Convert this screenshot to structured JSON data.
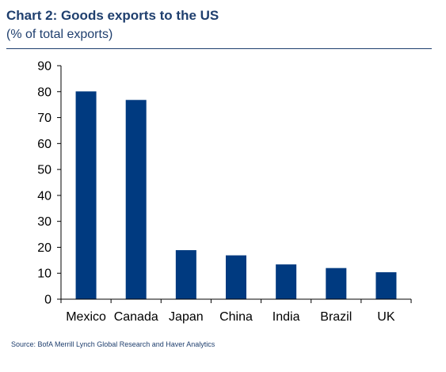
{
  "title": "Chart 2: Goods exports to the US",
  "subtitle": "(% of total exports)",
  "source": "Source: BofA Merrill Lynch Global Research and Haver Analytics",
  "colors": {
    "bar": "#003a80",
    "text": "#1f3f6e",
    "axis": "#000000"
  },
  "chart_data": {
    "type": "bar",
    "title": "Chart 2: Goods exports to the US",
    "subtitle": "(% of total exports)",
    "xlabel": "",
    "ylabel": "",
    "categories": [
      "Mexico",
      "Canada",
      "Japan",
      "China",
      "India",
      "Brazil",
      "UK"
    ],
    "values": [
      80.1,
      76.8,
      18.9,
      16.9,
      13.4,
      12.0,
      10.4
    ],
    "ylim": [
      0,
      90
    ],
    "yticks": [
      0,
      10,
      20,
      30,
      40,
      50,
      60,
      70,
      80,
      90
    ],
    "grid": false,
    "legend": "none"
  }
}
